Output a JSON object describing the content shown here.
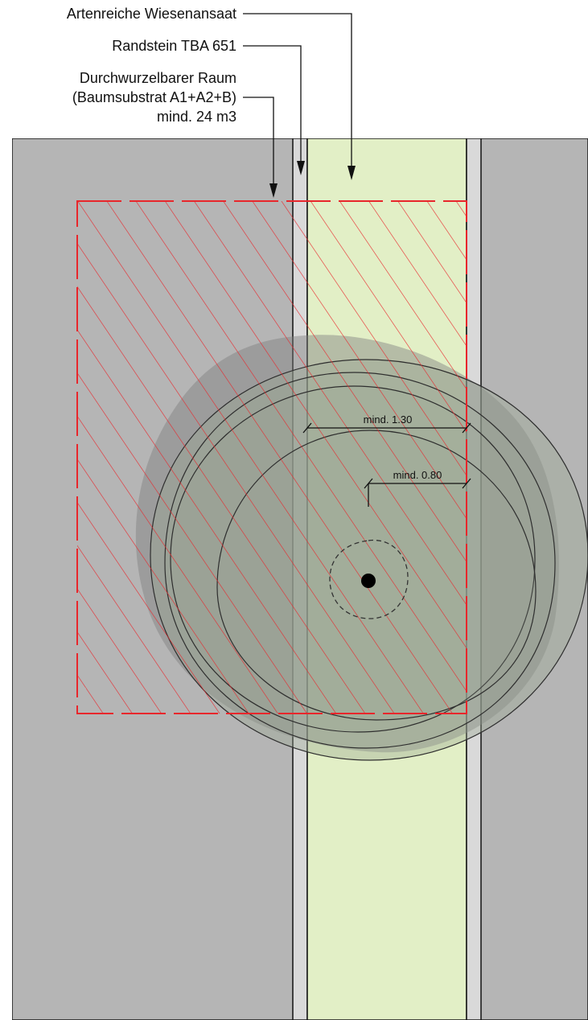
{
  "labels": {
    "wiese": "Artenreiche Wiesenansaat",
    "randstein": "Randstein TBA 651",
    "raum_line1": "Durchwurzelbarer Raum",
    "raum_line2": "(Baumsubstrat A1+A2+B)",
    "raum_line3": "mind. 24 m3"
  },
  "dimensions": {
    "crown_offset": "mind. 1.30",
    "trunk_offset": "mind. 0.80"
  },
  "colors": {
    "paving": "#b5b5b5",
    "curb": "#d9d9d9",
    "meadow": "#e2efc6",
    "root_space": "#e8262b",
    "canopy": "#9aa894",
    "canopy_shadow": "#8a8a8a",
    "line": "#111111"
  }
}
